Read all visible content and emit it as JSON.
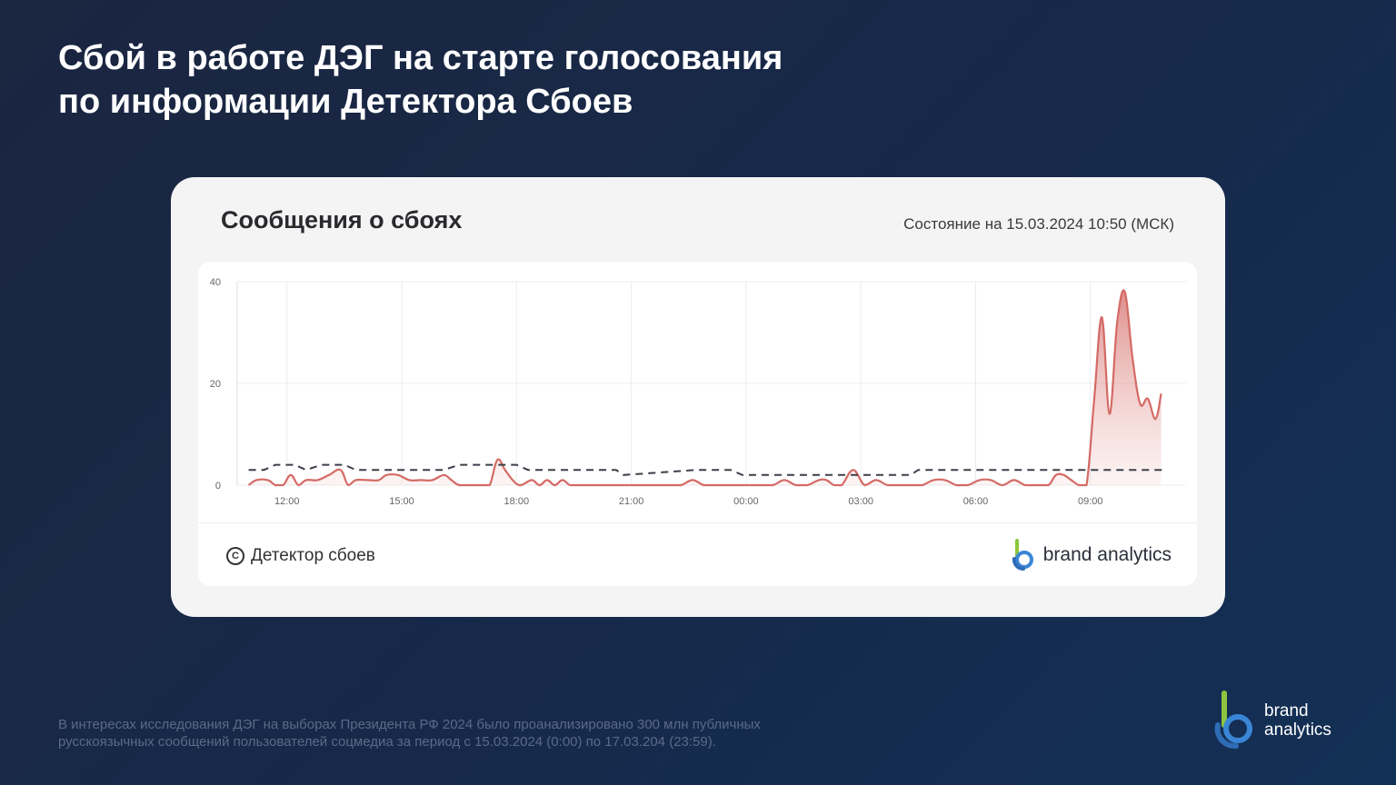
{
  "page": {
    "title_line1": "Сбой в работе ДЭГ на старте голосования",
    "title_line2": "по информации Детектора Сбоев",
    "footnote_line1": "В интересах исследования ДЭГ на выборах Президента РФ 2024 было проанализировано 300 млн публичных",
    "footnote_line2": "русскоязычных сообщений пользователей соцмедиа за период с 15.03.2024 (0:00) по 17.03.204 (23:59)."
  },
  "card": {
    "title": "Сообщения о сбоях",
    "status": "Состояние на 15.03.2024 10:50 (МСК)",
    "source_label": "Детектор сбоев",
    "source_icon": "copyright-icon",
    "brand_label": "brand analytics"
  },
  "brand_logo": {
    "line1": "brand",
    "line2": "analytics",
    "colors": {
      "green": "#8cc63f",
      "blue": "#3a86d6"
    }
  },
  "colors": {
    "line": "#d46a65",
    "fill": "#e8a6a2",
    "baseline": "#3b3f4a",
    "grid": "#ececef",
    "axis_text": "#666666"
  },
  "chart_data": {
    "type": "area",
    "xlabel": "",
    "ylabel": "",
    "x_ticks": [
      "12:00",
      "15:00",
      "18:00",
      "21:00",
      "00:00",
      "03:00",
      "06:00",
      "09:00"
    ],
    "x_tick_hours": [
      12,
      15,
      18,
      21,
      24,
      27,
      30,
      33
    ],
    "xlim": [
      10.7,
      35.5
    ],
    "y_ticks": [
      0,
      20,
      40
    ],
    "ylim": [
      0,
      40
    ],
    "grid": true,
    "legend": "none",
    "series": [
      {
        "style": "solid-filled",
        "x": [
          11.0,
          11.2,
          11.5,
          11.7,
          11.9,
          12.1,
          12.3,
          12.5,
          12.8,
          13.1,
          13.4,
          13.6,
          13.8,
          14.1,
          14.4,
          14.6,
          14.9,
          15.2,
          15.5,
          15.8,
          16.1,
          16.3,
          16.5,
          16.8,
          17.1,
          17.3,
          17.5,
          17.7,
          17.9,
          18.1,
          18.4,
          18.6,
          18.8,
          19.0,
          19.2,
          19.4,
          19.6,
          19.9,
          20.2,
          20.5,
          20.8,
          21.1,
          21.4,
          21.7,
          22.0,
          22.3,
          22.6,
          22.9,
          23.2,
          23.5,
          23.8,
          24.1,
          24.4,
          24.7,
          25.0,
          25.3,
          25.6,
          25.9,
          26.1,
          26.3,
          26.5,
          26.8,
          27.1,
          27.4,
          27.7,
          28.0,
          28.3,
          28.6,
          28.9,
          29.2,
          29.5,
          29.8,
          30.1,
          30.4,
          30.7,
          31.0,
          31.3,
          31.6,
          31.9,
          32.1,
          32.3,
          32.5,
          32.7,
          32.9,
          33.1,
          33.3,
          33.5,
          33.7,
          33.9,
          34.1,
          34.3,
          34.5,
          34.7,
          34.85
        ],
        "values": [
          0,
          1,
          1,
          0,
          0,
          2,
          0,
          1,
          1,
          2,
          3,
          0,
          1,
          1,
          1,
          2,
          2,
          1,
          1,
          1,
          2,
          1,
          0,
          0,
          0,
          0,
          5,
          3,
          1,
          0,
          1,
          0,
          1,
          0,
          1,
          0,
          0,
          0,
          0,
          0,
          0,
          0,
          0,
          0,
          0,
          0,
          1,
          0,
          0,
          0,
          0,
          0,
          0,
          0,
          1,
          0,
          0,
          1,
          1,
          0,
          0,
          3,
          0,
          1,
          0,
          0,
          0,
          0,
          1,
          1,
          0,
          0,
          1,
          1,
          0,
          1,
          0,
          0,
          0,
          2,
          2,
          1,
          0,
          0,
          17,
          33,
          14,
          32,
          38,
          25,
          16,
          17,
          13,
          18
        ]
      },
      {
        "style": "dashed",
        "x": [
          11.0,
          11.4,
          11.7,
          12.2,
          12.5,
          12.9,
          13.5,
          13.8,
          14.2,
          16.1,
          16.5,
          18.0,
          18.3,
          18.5,
          20.6,
          20.8,
          22.7,
          22.9,
          23.6,
          23.9,
          26.1,
          26.3,
          28.3,
          28.5,
          35.0
        ],
        "values": [
          3,
          3,
          4,
          4,
          3,
          4,
          4,
          3,
          3,
          3,
          4,
          4,
          3,
          3,
          3,
          2,
          3,
          3,
          3,
          2,
          2,
          2,
          2,
          3,
          3
        ]
      }
    ]
  }
}
